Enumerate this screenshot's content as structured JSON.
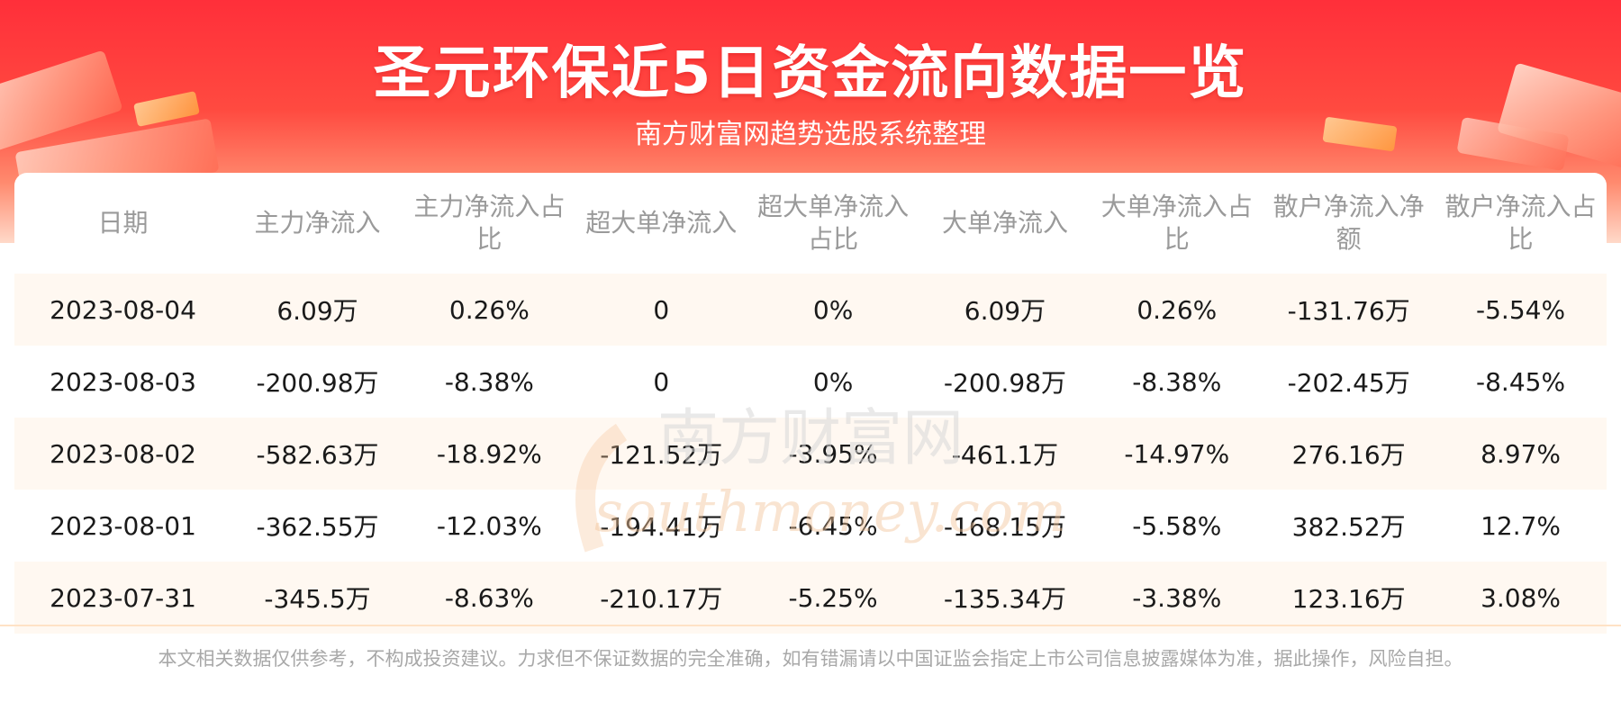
{
  "header": {
    "title": "圣元环保近5日资金流向数据一览",
    "subtitle": "南方财富网趋势选股系统整理"
  },
  "table": {
    "columns": [
      "日期",
      "主力净流入",
      "主力净流入占比",
      "超大单净流入",
      "超大单净流入占比",
      "大单净流入",
      "大单净流入占比",
      "散户净流入净额",
      "散户净流入占比"
    ],
    "rows": [
      [
        "2023-08-04",
        "6.09万",
        "0.26%",
        "0",
        "0%",
        "6.09万",
        "0.26%",
        "-131.76万",
        "-5.54%"
      ],
      [
        "2023-08-03",
        "-200.98万",
        "-8.38%",
        "0",
        "0%",
        "-200.98万",
        "-8.38%",
        "-202.45万",
        "-8.45%"
      ],
      [
        "2023-08-02",
        "-582.63万",
        "-18.92%",
        "-121.52万",
        "-3.95%",
        "-461.1万",
        "-14.97%",
        "276.16万",
        "8.97%"
      ],
      [
        "2023-08-01",
        "-362.55万",
        "-12.03%",
        "-194.41万",
        "-6.45%",
        "-168.15万",
        "-5.58%",
        "382.52万",
        "12.7%"
      ],
      [
        "2023-07-31",
        "-345.5万",
        "-8.63%",
        "-210.17万",
        "-5.25%",
        "-135.34万",
        "-3.38%",
        "123.16万",
        "3.08%"
      ]
    ]
  },
  "watermark": {
    "cn": "南方财富网",
    "en": "southmoney.com"
  },
  "footer": {
    "disclaimer": "本文相关数据仅供参考，不构成投资建议。力求但不保证数据的完全准确，如有错漏请以中国证监会指定上市公司信息披露媒体为准，据此操作，风险自担。"
  },
  "colors": {
    "banner_red": "#ff2f3a",
    "row_stripe": "#fff8f1",
    "header_text": "#9a9a9a"
  }
}
